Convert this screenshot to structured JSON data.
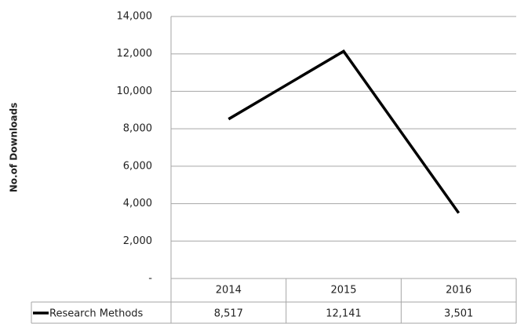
{
  "chart_data": {
    "type": "line",
    "y_label": "No.of Downloads",
    "categories": [
      "2014",
      "2015",
      "2016"
    ],
    "series": [
      {
        "name": "Research Methods",
        "color": "#000000",
        "values": [
          8517,
          12141,
          3501
        ],
        "value_labels": [
          "8,517",
          "12,141",
          "3,501"
        ]
      }
    ],
    "ylim": [
      0,
      14000
    ],
    "yticks": [
      {
        "value": 0,
        "label": "-"
      },
      {
        "value": 2000,
        "label": "2,000"
      },
      {
        "value": 4000,
        "label": "4,000"
      },
      {
        "value": 6000,
        "label": "6,000"
      },
      {
        "value": 8000,
        "label": "8,000"
      },
      {
        "value": 10000,
        "label": "10,000"
      },
      {
        "value": 12000,
        "label": "12,000"
      },
      {
        "value": 14000,
        "label": "14,000"
      }
    ],
    "grid": true
  }
}
